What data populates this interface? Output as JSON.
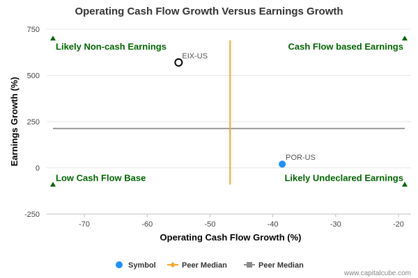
{
  "chart_data": {
    "type": "scatter",
    "title": "Operating Cash Flow Growth Versus Earnings Growth",
    "xlabel": "Operating Cash Flow Growth (%)",
    "ylabel": "Earnings Growth (%)",
    "xlim": [
      -76,
      -18
    ],
    "ylim": [
      -250,
      750
    ],
    "x_ticks": [
      -70,
      -60,
      -50,
      -40,
      -30,
      -20
    ],
    "y_ticks": [
      750,
      500,
      250,
      0,
      -250
    ],
    "x_tick_labels": [
      "-70",
      "-60",
      "-50",
      "-40",
      "-30",
      "-20"
    ],
    "y_tick_labels": [
      "750",
      "500",
      "250",
      "0",
      "-250"
    ],
    "grid": "horizontal",
    "points": [
      {
        "label": "EIX-US",
        "x": -55,
        "y": 570,
        "style": "hollow",
        "color": "#000000"
      },
      {
        "label": "POR-US",
        "x": -38.5,
        "y": 20,
        "style": "filled",
        "color": "#1e90ff"
      }
    ],
    "peer_median_x": -46.8,
    "peer_median_y": 213,
    "quadrants": {
      "top_left": "Likely Non-cash Earnings",
      "top_right": "Cash Flow based Earnings",
      "bottom_left": "Low Cash Flow Base",
      "bottom_right": "Likely Undeclared Earnings"
    },
    "legend": {
      "position": "bottom-center",
      "items": [
        {
          "label": "Symbol",
          "color": "#1e90ff",
          "marker": "circle"
        },
        {
          "label": "Peer Median",
          "color": "#f5a623",
          "marker": "diamond-line"
        },
        {
          "label": "Peer Median",
          "color": "#8c8c8c",
          "marker": "square-line"
        }
      ]
    },
    "credit": "www.capitalcube.com",
    "colors": {
      "quadrant_text": "#006400",
      "median_vertical": "#f5a623",
      "median_horizontal": "#999999",
      "grid": "#e6e6e6"
    }
  }
}
